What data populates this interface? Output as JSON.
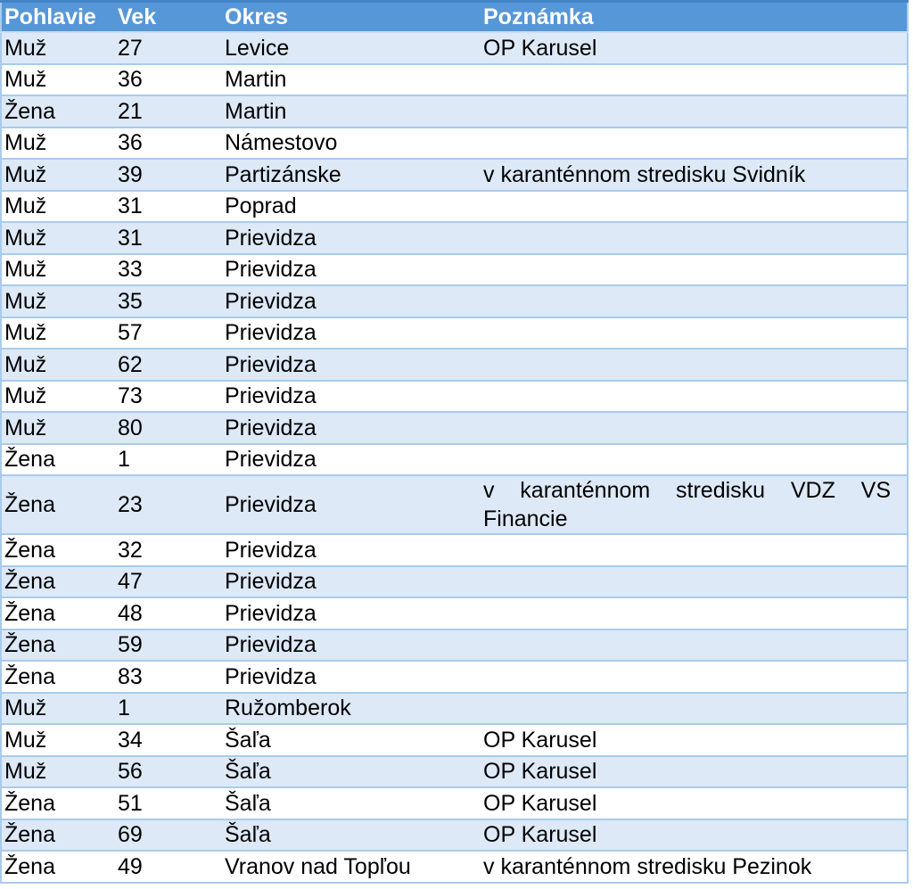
{
  "table": {
    "columns": [
      {
        "key": "gender",
        "label": "Pohlavie"
      },
      {
        "key": "age",
        "label": "Vek"
      },
      {
        "key": "district",
        "label": "Okres"
      },
      {
        "key": "note",
        "label": "Poznámka"
      }
    ],
    "rows": [
      {
        "gender": "Muž",
        "age": "27",
        "district": "Levice",
        "note": "OP Karusel"
      },
      {
        "gender": "Muž",
        "age": "36",
        "district": "Martin",
        "note": ""
      },
      {
        "gender": "Žena",
        "age": "21",
        "district": "Martin",
        "note": ""
      },
      {
        "gender": "Muž",
        "age": "36",
        "district": "Námestovo",
        "note": ""
      },
      {
        "gender": "Muž",
        "age": "39",
        "district": "Partizánske",
        "note": "v karanténnom stredisku Svidník"
      },
      {
        "gender": "Muž",
        "age": "31",
        "district": "Poprad",
        "note": ""
      },
      {
        "gender": "Muž",
        "age": "31",
        "district": "Prievidza",
        "note": ""
      },
      {
        "gender": "Muž",
        "age": "33",
        "district": "Prievidza",
        "note": ""
      },
      {
        "gender": "Muž",
        "age": "35",
        "district": "Prievidza",
        "note": ""
      },
      {
        "gender": "Muž",
        "age": "57",
        "district": "Prievidza",
        "note": ""
      },
      {
        "gender": "Muž",
        "age": "62",
        "district": "Prievidza",
        "note": ""
      },
      {
        "gender": "Muž",
        "age": "73",
        "district": "Prievidza",
        "note": ""
      },
      {
        "gender": "Muž",
        "age": "80",
        "district": "Prievidza",
        "note": ""
      },
      {
        "gender": "Žena",
        "age": "1",
        "district": "Prievidza",
        "note": ""
      },
      {
        "gender": "Žena",
        "age": "23",
        "district": "Prievidza",
        "note": "v karanténnom stredisku VDZ VS Financie"
      },
      {
        "gender": "Žena",
        "age": "32",
        "district": "Prievidza",
        "note": ""
      },
      {
        "gender": "Žena",
        "age": "47",
        "district": "Prievidza",
        "note": ""
      },
      {
        "gender": "Žena",
        "age": "48",
        "district": "Prievidza",
        "note": ""
      },
      {
        "gender": "Žena",
        "age": "59",
        "district": "Prievidza",
        "note": ""
      },
      {
        "gender": "Žena",
        "age": "83",
        "district": "Prievidza",
        "note": ""
      },
      {
        "gender": "Muž",
        "age": "1",
        "district": "Ružomberok",
        "note": ""
      },
      {
        "gender": "Muž",
        "age": "34",
        "district": "Šaľa",
        "note": "OP Karusel"
      },
      {
        "gender": "Muž",
        "age": "56",
        "district": "Šaľa",
        "note": "OP Karusel"
      },
      {
        "gender": "Žena",
        "age": "51",
        "district": "Šaľa",
        "note": "OP Karusel"
      },
      {
        "gender": "Žena",
        "age": "69",
        "district": "Šaľa",
        "note": "OP Karusel"
      },
      {
        "gender": "Žena",
        "age": "49",
        "district": "Vranov nad Topľou",
        "note": "v karanténnom stredisku Pezinok"
      }
    ]
  },
  "colors": {
    "header_bg": "#5697d8",
    "header_text": "#ffffff",
    "header_top_border": "#4384c6",
    "header_separator": "#c9def3",
    "row_alt_bg": "#dde9f7",
    "row_bg": "#ffffff",
    "row_border": "#a9cbec",
    "text": "#000000"
  }
}
